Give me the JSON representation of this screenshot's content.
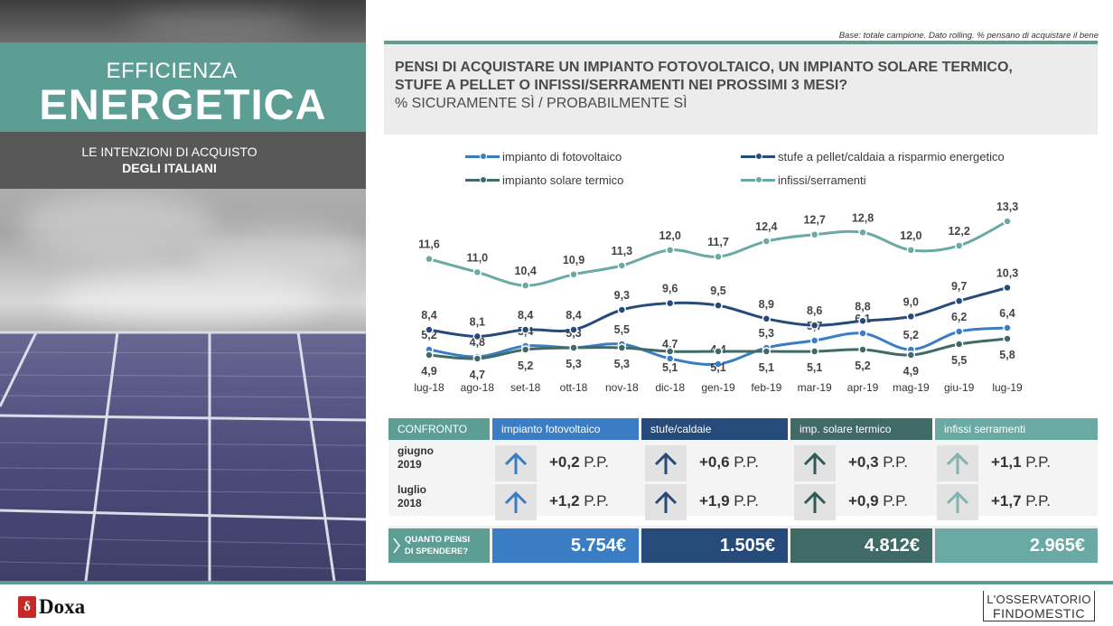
{
  "hero": {
    "title_line1": "EFFICIENZA",
    "title_line2": "ENERGETICA",
    "subtitle_line1": "LE INTENZIONI  DI ACQUISTO",
    "subtitle_line2": "DEGLI ITALIANI"
  },
  "header": {
    "base_note": "Base: totale campione.  Dato rolling. % pensano di acquistare il bene",
    "question": "PENSI DI ACQUISTARE UN IMPIANTO FOTOVOLTAICO, UN IMPIANTO SOLARE TERMICO,  STUFE A PELLET O INFISSI/SERRAMENTI NEI PROSSIMI 3 MESI?",
    "subquestion": "% SICURAMENTE SÌ / PROBABILMENTE SÌ"
  },
  "chart_data": {
    "type": "line",
    "x": [
      "lug-18",
      "ago-18",
      "set-18",
      "ott-18",
      "nov-18",
      "dic-18",
      "gen-19",
      "feb-19",
      "mar-19",
      "apr-19",
      "mag-19",
      "giu-19",
      "lug-19"
    ],
    "series": [
      {
        "name": "impianto di fotovoltaico",
        "color": "#3b7dc4",
        "values": [
          5.2,
          4.8,
          5.4,
          5.3,
          5.5,
          4.7,
          4.4,
          5.3,
          5.7,
          6.1,
          5.2,
          6.2,
          6.4
        ]
      },
      {
        "name": "stufe a pellet/caldaia a risparmio energetico",
        "color": "#264a7a",
        "values": [
          8.4,
          8.1,
          8.4,
          8.4,
          9.3,
          9.6,
          9.5,
          8.9,
          8.6,
          8.8,
          9.0,
          9.7,
          10.3
        ]
      },
      {
        "name": "impianto solare termico",
        "color": "#3f6a66",
        "values": [
          4.9,
          4.7,
          5.2,
          5.3,
          5.3,
          5.1,
          5.1,
          5.1,
          5.1,
          5.2,
          4.9,
          5.5,
          5.8
        ]
      },
      {
        "name": "infissi/serramenti",
        "color": "#6aa9a4",
        "values": [
          11.6,
          11.0,
          10.4,
          10.9,
          11.3,
          12.0,
          11.7,
          12.4,
          12.7,
          12.8,
          12.0,
          12.2,
          13.3
        ]
      }
    ],
    "legend_position": "top"
  },
  "comparison": {
    "header_label": "CONFRONTO",
    "columns": [
      {
        "label": "impianto  fotovoltaico",
        "color": "#3b7dc4",
        "arrow_color": "#3b7dc4",
        "deltas": [
          "+0,2",
          "+1,2"
        ],
        "spend": "5.754€"
      },
      {
        "label": "stufe/caldaie",
        "color": "#264a7a",
        "arrow_color": "#264a7a",
        "deltas": [
          "+0,6",
          "+1,9"
        ],
        "spend": "1.505€"
      },
      {
        "label": "imp. solare termico",
        "color": "#3f6a66",
        "arrow_color": "#2f5c58",
        "deltas": [
          "+0,3",
          "+0,9"
        ],
        "spend": "4.812€"
      },
      {
        "label": "infissi  serramenti",
        "color": "#6aa9a4",
        "arrow_color": "#7fb4b0",
        "deltas": [
          "+1,1",
          "+1,7"
        ],
        "spend": "2.965€"
      }
    ],
    "rows": [
      {
        "label_line1": "giugno",
        "label_line2": "2019"
      },
      {
        "label_line1": "luglio",
        "label_line2": "2018"
      }
    ],
    "unit": "P.P.",
    "spend_label_line1": "QUANTO PENSI",
    "spend_label_line2": "DI SPENDERE?"
  },
  "footer": {
    "doxa_mark": "δ",
    "doxa_text": "Doxa",
    "osservatorio_line1": "L'OSSERVATORIO",
    "osservatorio_line2": "FINDOMESTIC"
  }
}
